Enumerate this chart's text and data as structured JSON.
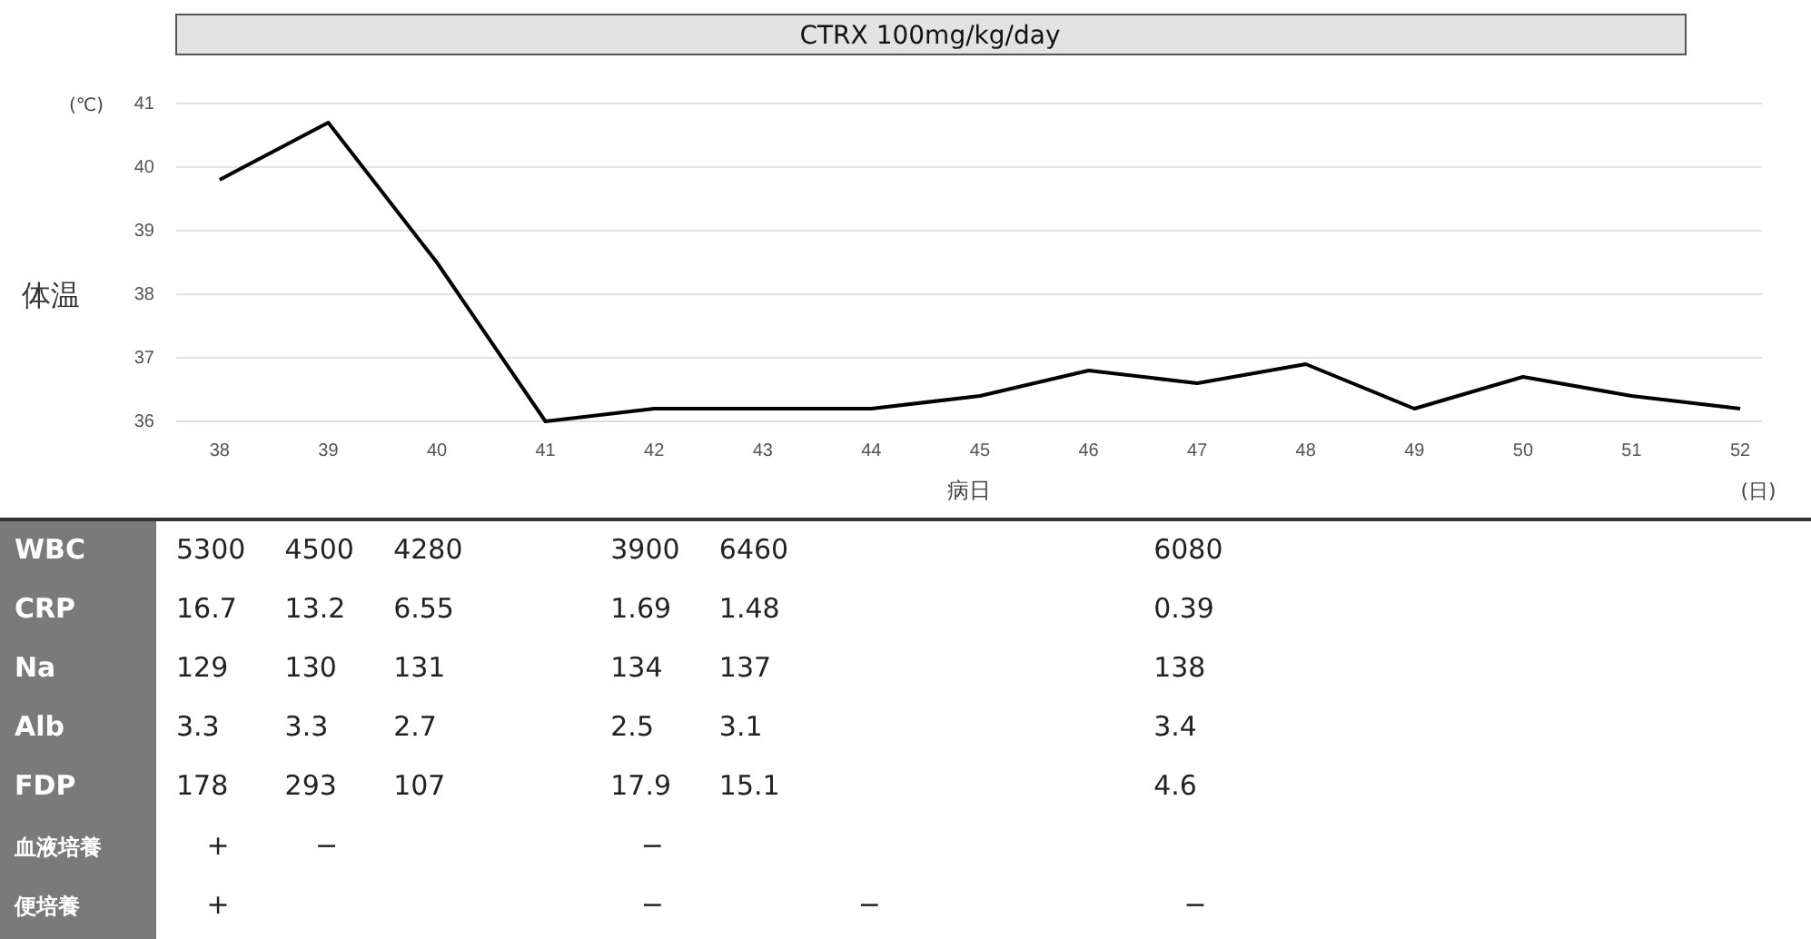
{
  "chart_data": [
    {
      "type": "line",
      "title": "CTRX 100mg/kg/day",
      "xlabel": "病日",
      "ylabel": "体温",
      "annotations": [
        "(℃)",
        "(日)"
      ],
      "x": [
        38,
        39,
        40,
        41,
        42,
        43,
        44,
        45,
        46,
        47,
        48,
        49,
        50,
        51,
        52
      ],
      "series": [
        {
          "color": "#000000",
          "values": [
            39.8,
            40.7,
            38.5,
            36.0,
            36.2,
            36.2,
            36.2,
            36.4,
            36.8,
            36.6,
            36.9,
            36.2,
            36.7,
            36.4,
            36.2
          ]
        }
      ],
      "xlim": [
        37.6,
        52.2
      ],
      "xticks": [
        38,
        39,
        40,
        41,
        42,
        43,
        44,
        45,
        46,
        47,
        48,
        49,
        50,
        51,
        52
      ],
      "ylim": [
        36,
        41
      ],
      "yticks": [
        36,
        37,
        38,
        39,
        40,
        41
      ],
      "grid": "y",
      "marker": "none",
      "line_style": "solid"
    },
    {
      "type": "other",
      "categories": [
        null,
        null,
        null,
        null,
        null,
        null,
        null,
        null,
        null,
        null,
        null,
        null,
        null,
        null,
        null
      ],
      "series": [
        {
          "name": "WBC",
          "values": [
            null,
            null,
            null,
            null,
            null,
            null,
            null,
            null,
            null,
            null,
            null,
            null,
            null,
            null,
            null
          ],
          "value_labels": [
            "5300",
            "4500",
            "4280",
            null,
            "3900",
            "6460",
            null,
            null,
            null,
            "6080",
            null,
            null,
            null,
            null,
            null
          ]
        },
        {
          "name": "CRP",
          "values": [
            null,
            null,
            null,
            null,
            null,
            null,
            null,
            null,
            null,
            null,
            null,
            null,
            null,
            null,
            null
          ],
          "value_labels": [
            "16.7",
            "13.2",
            "6.55",
            null,
            "1.69",
            "1.48",
            null,
            null,
            null,
            "0.39",
            null,
            null,
            null,
            null,
            null
          ]
        },
        {
          "name": "Na",
          "values": [
            null,
            null,
            null,
            null,
            null,
            null,
            null,
            null,
            null,
            null,
            null,
            null,
            null,
            null,
            null
          ],
          "value_labels": [
            "129",
            "130",
            "131",
            null,
            "134",
            "137",
            null,
            null,
            null,
            "138",
            null,
            null,
            null,
            null,
            null
          ]
        },
        {
          "name": "Alb",
          "values": [
            null,
            null,
            null,
            null,
            null,
            null,
            null,
            null,
            null,
            null,
            null,
            null,
            null,
            null,
            null
          ],
          "value_labels": [
            "3.3",
            "3.3",
            "2.7",
            null,
            "2.5",
            "3.1",
            null,
            null,
            null,
            "3.4",
            null,
            null,
            null,
            null,
            null
          ]
        },
        {
          "name": "FDP",
          "values": [
            null,
            null,
            null,
            null,
            null,
            null,
            null,
            null,
            null,
            null,
            null,
            null,
            null,
            null,
            null
          ],
          "value_labels": [
            "178",
            "293",
            "107",
            null,
            "17.9",
            "15.1",
            null,
            null,
            null,
            "4.6",
            null,
            null,
            null,
            null,
            null
          ]
        },
        {
          "name": "血液培養",
          "values": [
            null,
            null,
            null,
            null,
            null,
            null,
            null,
            null,
            null,
            null,
            null,
            null,
            null,
            null,
            null
          ],
          "value_labels": [
            "+",
            "−",
            null,
            null,
            "−",
            null,
            null,
            null,
            null,
            null,
            null,
            null,
            null,
            null,
            null
          ]
        },
        {
          "name": "便培養",
          "values": [
            null,
            null,
            null,
            null,
            null,
            null,
            null,
            null,
            null,
            null,
            null,
            null,
            null,
            null,
            null
          ],
          "value_labels": [
            "+",
            null,
            null,
            null,
            "−",
            null,
            "−",
            null,
            null,
            "−",
            null,
            null,
            null,
            null,
            null
          ]
        }
      ]
    }
  ]
}
